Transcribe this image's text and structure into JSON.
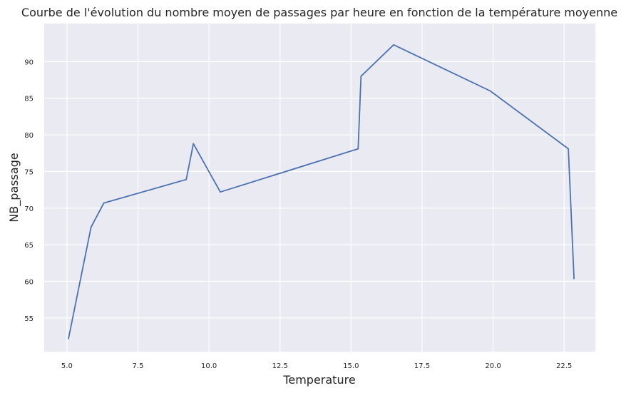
{
  "chart_data": {
    "type": "line",
    "title": "Courbe de l'évolution du nombre moyen de passages par heure en fonction de la température moyenne",
    "xlabel": "Temperature",
    "ylabel": "NB_passage",
    "xlim": [
      4.2,
      23.6
    ],
    "ylim": [
      50.4,
      95.2
    ],
    "x_ticks": [
      5.0,
      7.5,
      10.0,
      12.5,
      15.0,
      17.5,
      20.0,
      22.5
    ],
    "x_tick_labels": [
      "5.0",
      "7.5",
      "10.0",
      "12.5",
      "15.0",
      "17.5",
      "20.0",
      "22.5"
    ],
    "y_ticks": [
      55,
      60,
      65,
      70,
      75,
      80,
      85,
      90
    ],
    "y_tick_labels": [
      "55",
      "60",
      "65",
      "70",
      "75",
      "80",
      "85",
      "90"
    ],
    "grid": true,
    "colors": {
      "line": "#4c72b0",
      "background": "#eaeaf2",
      "grid": "#ffffff"
    },
    "series": [
      {
        "x": [
          5.05,
          5.85,
          6.3,
          9.2,
          9.45,
          10.4,
          15.25,
          15.35,
          16.5,
          19.9,
          22.65,
          22.85
        ],
        "y": [
          52.1,
          67.4,
          70.7,
          73.9,
          78.8,
          72.2,
          78.1,
          88.0,
          92.3,
          86.0,
          78.1,
          60.3
        ]
      }
    ]
  }
}
